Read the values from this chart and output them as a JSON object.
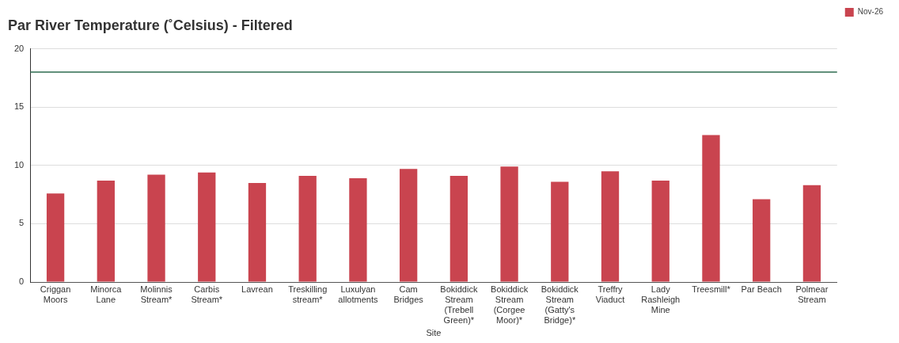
{
  "chart_data": {
    "type": "bar",
    "title": "Par River Temperature (˚Celsius) - Filtered",
    "xlabel": "Site",
    "categories": [
      [
        "Criggan",
        "Moors"
      ],
      [
        "Minorca",
        "Lane"
      ],
      [
        "Molinnis",
        "Stream*"
      ],
      [
        "Carbis",
        "Stream*"
      ],
      [
        "Lavrean"
      ],
      [
        "Treskilling",
        "stream*"
      ],
      [
        "Luxulyan",
        "allotments"
      ],
      [
        "Cam",
        "Bridges"
      ],
      [
        "Bokiddick",
        "Stream",
        "(Trebell",
        "Green)*"
      ],
      [
        "Bokiddick",
        "Stream",
        "(Corgee",
        "Moor)*"
      ],
      [
        "Bokiddick",
        "Stream",
        "(Gatty's",
        "Bridge)*"
      ],
      [
        "Treffry",
        "Viaduct"
      ],
      [
        "Lady",
        "Rashleigh",
        "Mine"
      ],
      [
        "Treesmill*"
      ],
      [
        "Par Beach"
      ],
      [
        "Polmear",
        "Stream"
      ]
    ],
    "series": [
      {
        "name": "Nov-26",
        "color": "#c9444f",
        "values": [
          7.6,
          8.7,
          9.2,
          9.4,
          8.5,
          9.1,
          8.9,
          9.7,
          9.1,
          9.9,
          8.6,
          9.5,
          8.7,
          12.6,
          7.1,
          8.3
        ]
      }
    ],
    "ylim": [
      0,
      20
    ],
    "yticks": [
      0,
      5,
      10,
      15,
      20
    ],
    "grid": "y",
    "legend": "top right",
    "ref_lines": [
      {
        "axis": "y",
        "value": 18,
        "color": "#2e6b4f"
      }
    ]
  }
}
